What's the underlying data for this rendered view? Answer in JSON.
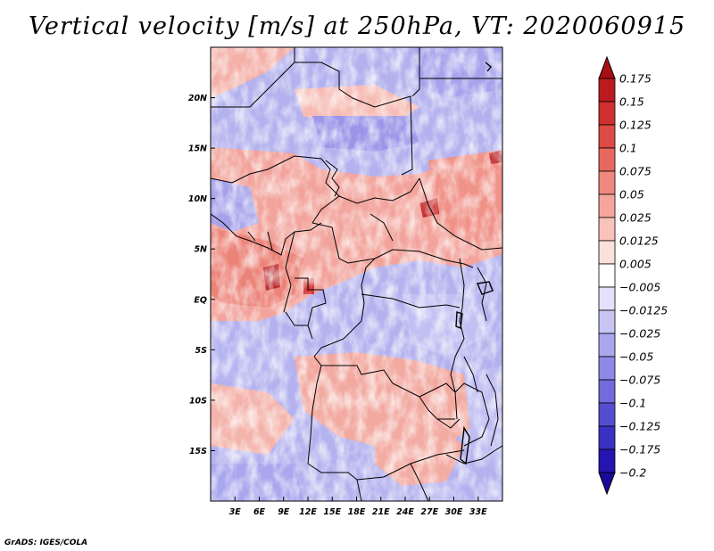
{
  "title": "Vertical velocity [m/s] at 250hPa, VT: 2020060915",
  "credit": "GrADS: IGES/COLA",
  "map": {
    "lon_range": [
      0,
      36
    ],
    "lat_range": [
      -20,
      25
    ],
    "lat_ticks": [
      {
        "value": 20,
        "label": "20N"
      },
      {
        "value": 15,
        "label": "15N"
      },
      {
        "value": 10,
        "label": "10N"
      },
      {
        "value": 5,
        "label": "5N"
      },
      {
        "value": 0,
        "label": "EQ"
      },
      {
        "value": -5,
        "label": "5S"
      },
      {
        "value": -10,
        "label": "10S"
      },
      {
        "value": -15,
        "label": "15S"
      }
    ],
    "lon_ticks": [
      {
        "value": 3,
        "label": "3E"
      },
      {
        "value": 6,
        "label": "6E"
      },
      {
        "value": 9,
        "label": "9E"
      },
      {
        "value": 12,
        "label": "12E"
      },
      {
        "value": 15,
        "label": "15E"
      },
      {
        "value": 18,
        "label": "18E"
      },
      {
        "value": 21,
        "label": "21E"
      },
      {
        "value": 24,
        "label": "24E"
      },
      {
        "value": 27,
        "label": "27E"
      },
      {
        "value": 30,
        "label": "30E"
      },
      {
        "value": 33,
        "label": "33E"
      }
    ]
  },
  "colorbar": {
    "levels": [
      {
        "label": "0.175",
        "color": "#a50f15"
      },
      {
        "label": "0.15",
        "color": "#bb1b20"
      },
      {
        "label": "0.125",
        "color": "#cf2f2f"
      },
      {
        "label": "0.1",
        "color": "#de4a45"
      },
      {
        "label": "0.075",
        "color": "#e8685f"
      },
      {
        "label": "0.05",
        "color": "#f0887e"
      },
      {
        "label": "0.025",
        "color": "#f6a59d"
      },
      {
        "label": "0.0125",
        "color": "#f9c3bc"
      },
      {
        "label": "0.005",
        "color": "#fce0dc"
      },
      {
        "label": "−0.005",
        "color": "#ffffff"
      },
      {
        "label": "−0.0125",
        "color": "#e4e2fb"
      },
      {
        "label": "−0.025",
        "color": "#c8c5f5"
      },
      {
        "label": "−0.05",
        "color": "#aba7ee"
      },
      {
        "label": "−0.075",
        "color": "#8e89e6"
      },
      {
        "label": "−0.1",
        "color": "#716bdc"
      },
      {
        "label": "−0.125",
        "color": "#554dd0"
      },
      {
        "label": "−0.175",
        "color": "#3a31c2"
      },
      {
        "label": "−0.2",
        "color": "#2414b0"
      }
    ],
    "top_color": "#a50f15",
    "bottom_color": "#1a0a9a"
  }
}
